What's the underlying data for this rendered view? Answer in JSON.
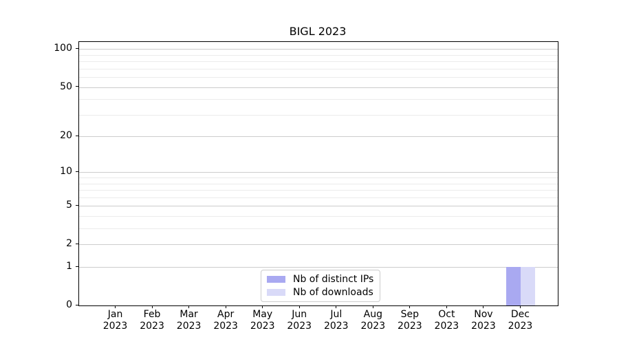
{
  "chart_data": {
    "type": "bar",
    "title": "BIGL 2023",
    "categories": [
      "Jan 2023",
      "Feb 2023",
      "Mar 2023",
      "Apr 2023",
      "May 2023",
      "Jun 2023",
      "Jul 2023",
      "Aug 2023",
      "Sep 2023",
      "Oct 2023",
      "Nov 2023",
      "Dec 2023"
    ],
    "series": [
      {
        "name": "Nb of distinct IPs",
        "color": "#a9a9f1",
        "values": [
          0,
          0,
          0,
          0,
          0,
          0,
          0,
          0,
          0,
          0,
          0,
          1
        ]
      },
      {
        "name": "Nb of downloads",
        "color": "#d9daf8",
        "values": [
          0,
          0,
          0,
          0,
          0,
          0,
          0,
          0,
          0,
          0,
          0,
          1
        ]
      }
    ],
    "xlabel": "",
    "ylabel": "",
    "yscale": "log1p",
    "ylim": [
      0,
      114
    ],
    "yticks": [
      0,
      1,
      2,
      5,
      10,
      20,
      50,
      100
    ],
    "minor_yticks": [
      3,
      4,
      6,
      7,
      8,
      9,
      30,
      40,
      60,
      70,
      80,
      90
    ],
    "grid": true,
    "legend_position": "lower center"
  },
  "colors": {
    "major_grid": "#cccccc",
    "minor_grid": "#ebebeb",
    "spine": "#000000",
    "background": "#ffffff"
  }
}
